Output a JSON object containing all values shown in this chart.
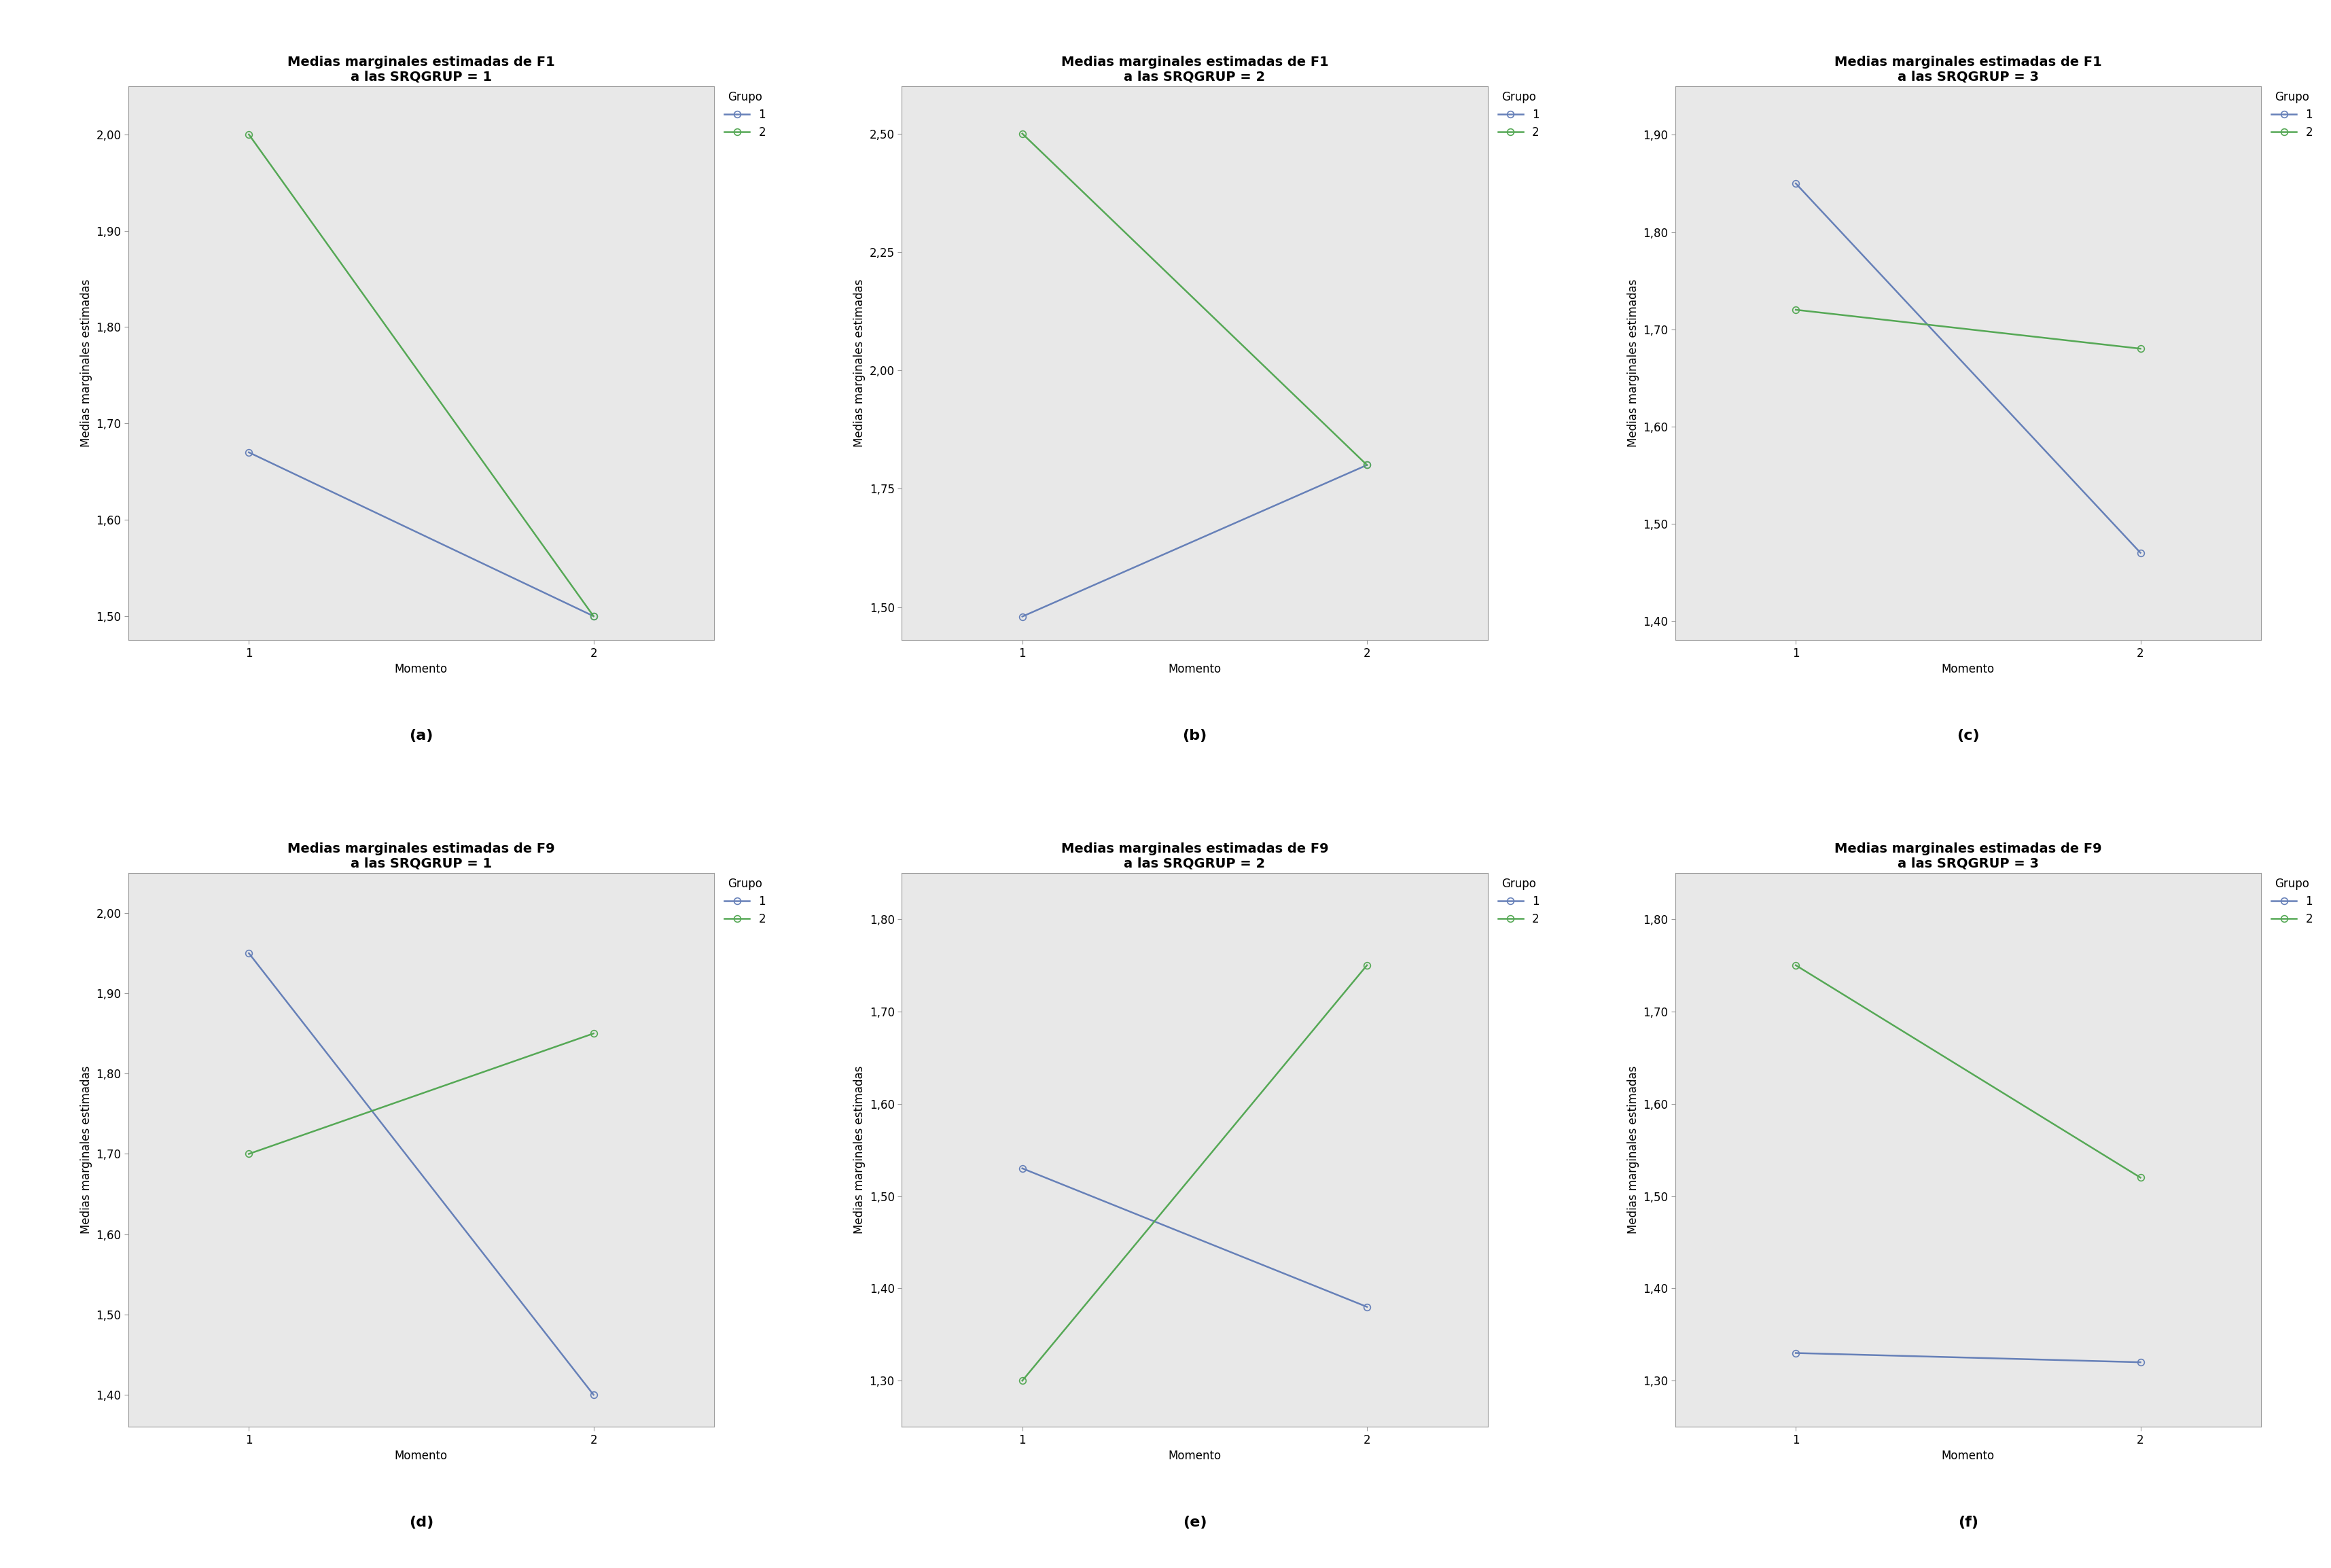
{
  "plots": [
    {
      "title_line1": "Medias marginales estimadas de F1",
      "title_line2": "a las SRQGRUP = 1",
      "xlabel": "Momento",
      "ylabel": "Medias marginales estimadas",
      "group1": {
        "x": [
          1,
          2
        ],
        "y": [
          1.67,
          1.5
        ]
      },
      "group2": {
        "x": [
          1,
          2
        ],
        "y": [
          2.0,
          1.5
        ]
      },
      "ylim": [
        1.475,
        2.05
      ],
      "yticks": [
        1.5,
        1.6,
        1.7,
        1.8,
        1.9,
        2.0
      ],
      "ytick_labels": [
        "1,50",
        "1,60",
        "1,70",
        "1,80",
        "1,90",
        "2,00"
      ],
      "label": "(a)"
    },
    {
      "title_line1": "Medias marginales estimadas de F1",
      "title_line2": "a las SRQGRUP = 2",
      "xlabel": "Momento",
      "ylabel": "Medias marginales estimadas",
      "group1": {
        "x": [
          1,
          2
        ],
        "y": [
          1.48,
          1.8
        ]
      },
      "group2": {
        "x": [
          1,
          2
        ],
        "y": [
          2.5,
          1.8
        ]
      },
      "ylim": [
        1.43,
        2.6
      ],
      "yticks": [
        1.5,
        1.75,
        2.0,
        2.25,
        2.5
      ],
      "ytick_labels": [
        "1,50",
        "1,75",
        "2,00",
        "2,25",
        "2,50"
      ],
      "label": "(b)"
    },
    {
      "title_line1": "Medias marginales estimadas de F1",
      "title_line2": "a las SRQGRUP = 3",
      "xlabel": "Momento",
      "ylabel": "Medias marginales estimadas",
      "group1": {
        "x": [
          1,
          2
        ],
        "y": [
          1.85,
          1.47
        ]
      },
      "group2": {
        "x": [
          1,
          2
        ],
        "y": [
          1.72,
          1.68
        ]
      },
      "ylim": [
        1.38,
        1.95
      ],
      "yticks": [
        1.4,
        1.5,
        1.6,
        1.7,
        1.8,
        1.9
      ],
      "ytick_labels": [
        "1,40",
        "1,50",
        "1,60",
        "1,70",
        "1,80",
        "1,90"
      ],
      "label": "(c)"
    },
    {
      "title_line1": "Medias marginales estimadas de F9",
      "title_line2": "a las SRQGRUP = 1",
      "xlabel": "Momento",
      "ylabel": "Medias marginales estimadas",
      "group1": {
        "x": [
          1,
          2
        ],
        "y": [
          1.95,
          1.4
        ]
      },
      "group2": {
        "x": [
          1,
          2
        ],
        "y": [
          1.7,
          1.85
        ]
      },
      "ylim": [
        1.36,
        2.05
      ],
      "yticks": [
        1.4,
        1.5,
        1.6,
        1.7,
        1.8,
        1.9,
        2.0
      ],
      "ytick_labels": [
        "1,40",
        "1,50",
        "1,60",
        "1,70",
        "1,80",
        "1,90",
        "2,00"
      ],
      "label": "(d)"
    },
    {
      "title_line1": "Medias marginales estimadas de F9",
      "title_line2": "a las SRQGRUP = 2",
      "xlabel": "Momento",
      "ylabel": "Medias marginales estimadas",
      "group1": {
        "x": [
          1,
          2
        ],
        "y": [
          1.53,
          1.38
        ]
      },
      "group2": {
        "x": [
          1,
          2
        ],
        "y": [
          1.3,
          1.75
        ]
      },
      "ylim": [
        1.25,
        1.85
      ],
      "yticks": [
        1.3,
        1.4,
        1.5,
        1.6,
        1.7,
        1.8
      ],
      "ytick_labels": [
        "1,30",
        "1,40",
        "1,50",
        "1,60",
        "1,70",
        "1,80"
      ],
      "label": "(e)"
    },
    {
      "title_line1": "Medias marginales estimadas de F9",
      "title_line2": "a las SRQGRUP = 3",
      "xlabel": "Momento",
      "ylabel": "Medias marginales estimadas",
      "group1": {
        "x": [
          1,
          2
        ],
        "y": [
          1.33,
          1.32
        ]
      },
      "group2": {
        "x": [
          1,
          2
        ],
        "y": [
          1.75,
          1.52
        ]
      },
      "ylim": [
        1.25,
        1.85
      ],
      "yticks": [
        1.3,
        1.4,
        1.5,
        1.6,
        1.7,
        1.8
      ],
      "ytick_labels": [
        "1,30",
        "1,40",
        "1,50",
        "1,60",
        "1,70",
        "1,80"
      ],
      "label": "(f)"
    }
  ],
  "color_group1": "#6680b8",
  "color_group2": "#55a855",
  "bg_color": "#e8e8e8",
  "outer_bg": "#ffffff",
  "line_width": 1.8,
  "marker": "o",
  "marker_size": 7,
  "title_fontsize": 14,
  "axis_label_fontsize": 12,
  "tick_fontsize": 12,
  "legend_title_fontsize": 12,
  "legend_fontsize": 12,
  "label_fontsize": 16
}
